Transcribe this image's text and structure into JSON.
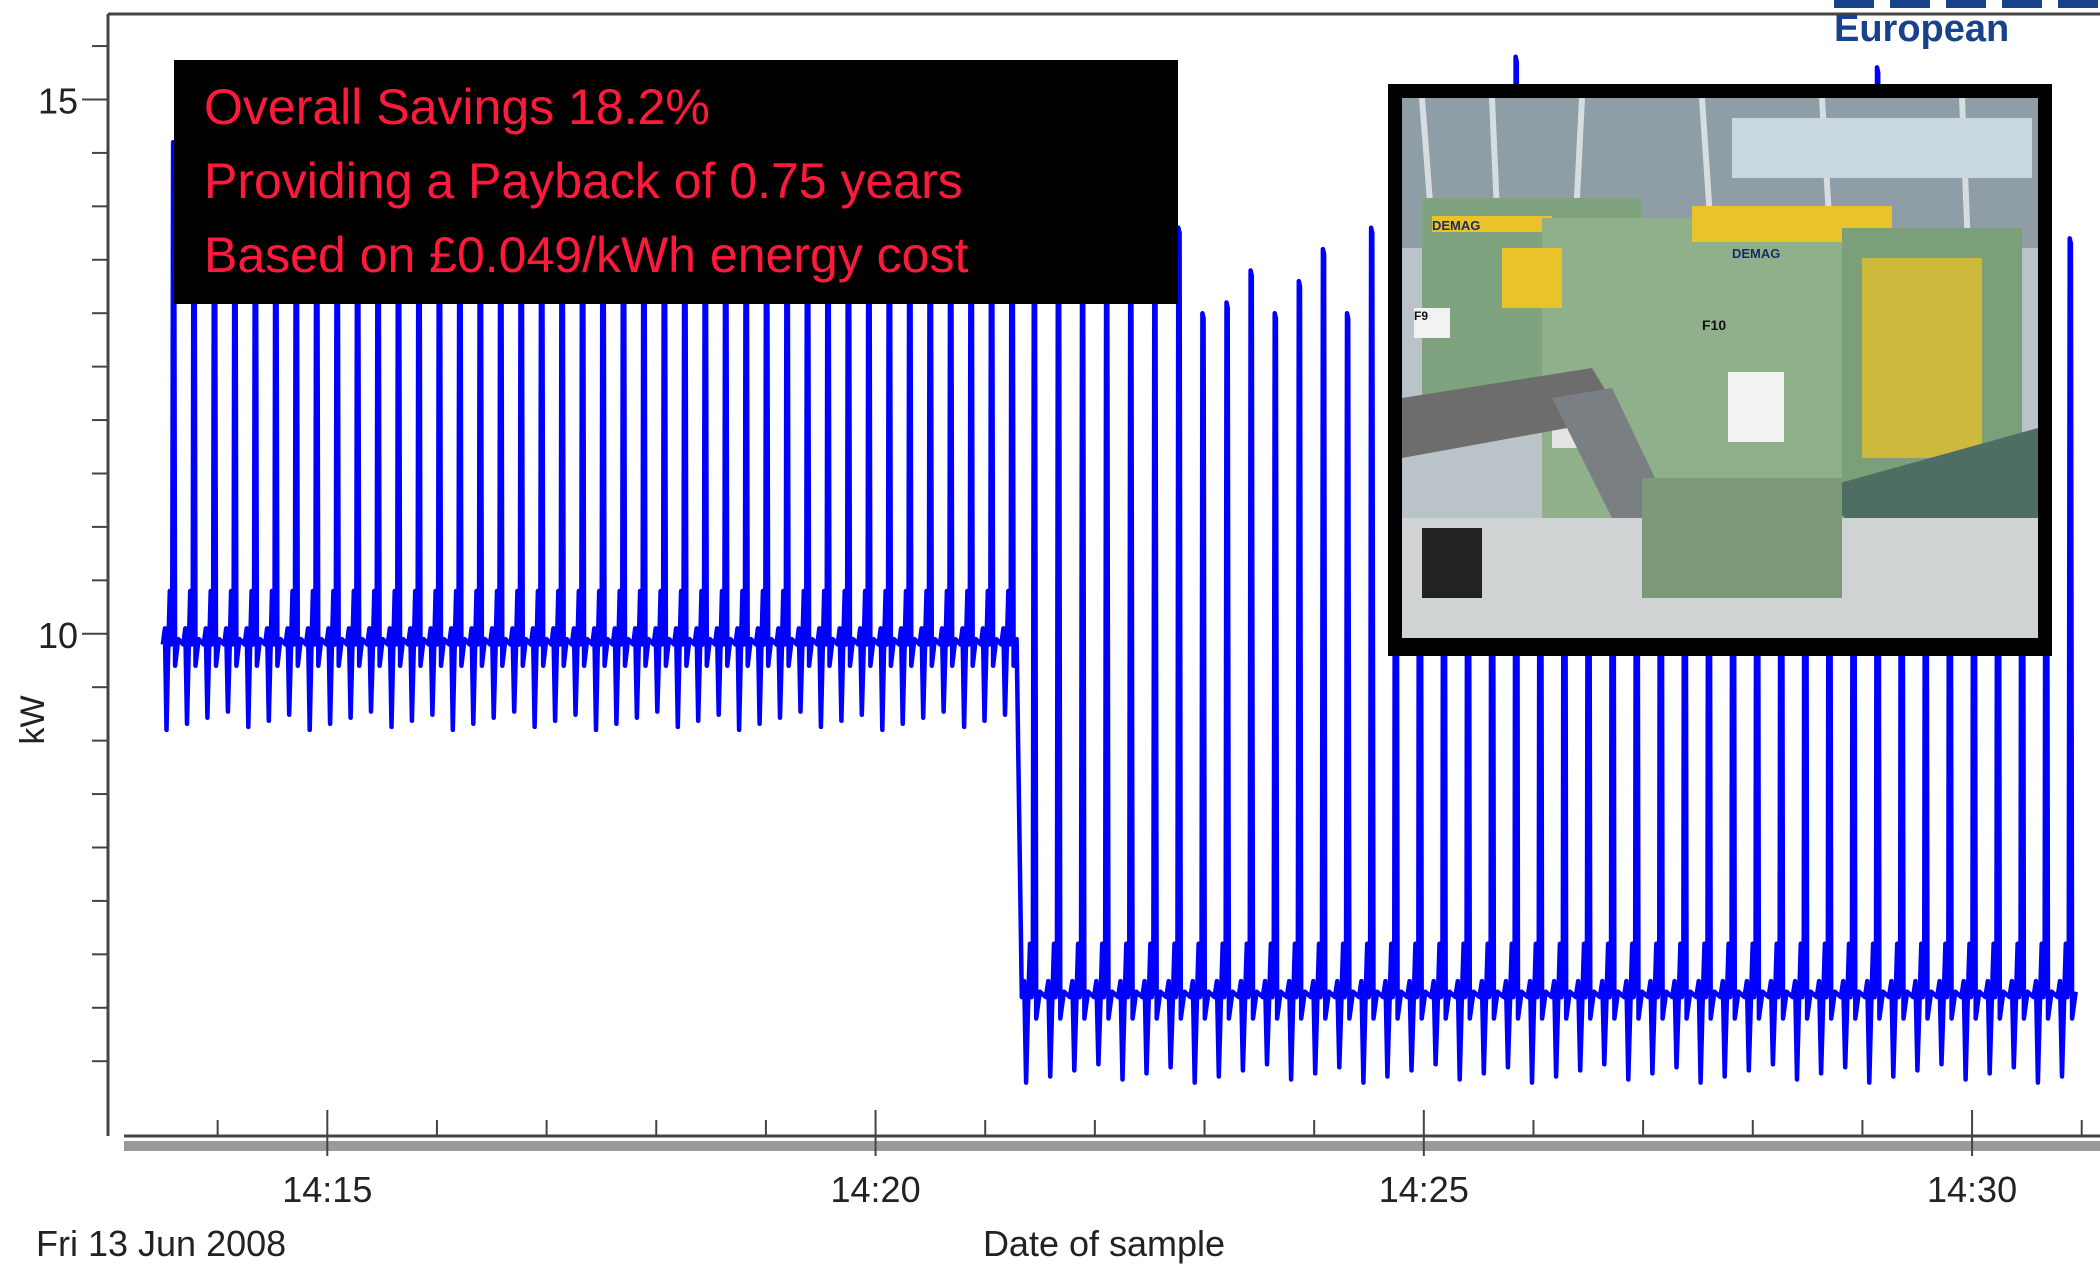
{
  "colors": {
    "series": "#0000ff",
    "overlay_bg": "#000000",
    "overlay_text": "#ff1a3c",
    "logo": "#17428c"
  },
  "logo": {
    "text": "European"
  },
  "overlay": {
    "lines": [
      "Overall Savings 18.2%",
      "Providing a Payback of 0.75 years",
      "Based on £0.049/kWh energy cost"
    ]
  },
  "photo": {
    "labels": [
      "DEMAG",
      "DEMAG",
      "F9",
      "F10"
    ]
  },
  "chart_data": {
    "type": "line",
    "xlabel": "Date of sample",
    "ylabel": "kW",
    "date_label": "Fri 13 Jun 2008",
    "x_ticks": [
      "14:15",
      "14:20",
      "14:25",
      "14:30"
    ],
    "y_ticks": [
      10,
      15
    ],
    "xlim": [
      "14:13:00",
      "14:31:10"
    ],
    "ylim": [
      5.3,
      15.8
    ],
    "grid": false,
    "series": [
      {
        "before_change": {
          "time_range": [
            "14:13:30",
            "14:21:20"
          ],
          "baseline_kw": 9.9,
          "trough_kw": 9.1,
          "peak_kw": 14.6,
          "cycle_count": 42
        },
        "after_change": {
          "time_range": [
            "14:21:20",
            "14:31:00"
          ],
          "baseline_kw": 6.6,
          "trough_kw": 5.8,
          "peak_kw": [
            13.5,
            14.0,
            13.2,
            13.3,
            13.3,
            13.2,
            13.8,
            13.0,
            13.1,
            13.4,
            13.0,
            13.3,
            13.6,
            13.0,
            13.8,
            13.9,
            14.7,
            13.4,
            14.0,
            13.8,
            15.4,
            13.3,
            13.5,
            13.1,
            13.8,
            13.1,
            14.2,
            13.0,
            13.3,
            13.3,
            14.0,
            13.6,
            14.3,
            13.8,
            13.5,
            15.3,
            13.3,
            13.0,
            13.5,
            13.7,
            14.0,
            14.1,
            13.3,
            13.7
          ]
        }
      }
    ]
  }
}
